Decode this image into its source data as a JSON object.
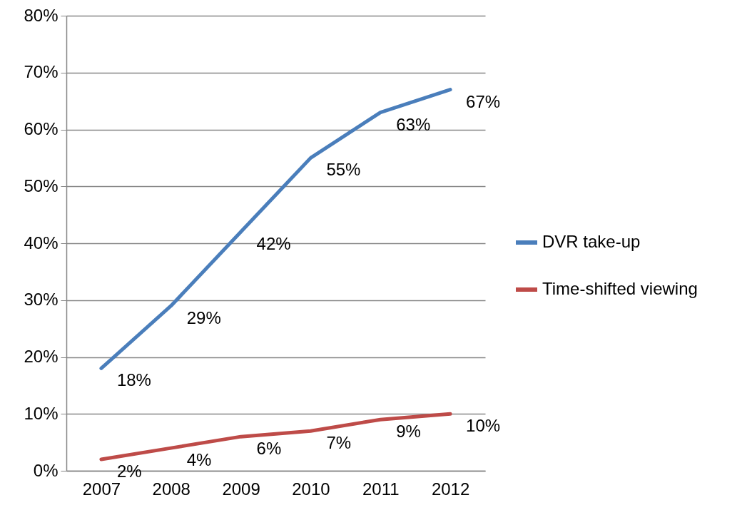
{
  "chart_data": {
    "type": "line",
    "categories": [
      "2007",
      "2008",
      "2009",
      "2010",
      "2011",
      "2012"
    ],
    "series": [
      {
        "name": "DVR take-up",
        "color": "#4a7ebb",
        "values": [
          18,
          29,
          42,
          55,
          63,
          67
        ],
        "value_labels": [
          "18%",
          "29%",
          "42%",
          "55%",
          "63%",
          "67%"
        ]
      },
      {
        "name": "Time-shifted viewing",
        "color": "#be4b48",
        "values": [
          2,
          4,
          6,
          7,
          9,
          10
        ],
        "value_labels": [
          "2%",
          "4%",
          "6%",
          "7%",
          "9%",
          "10%"
        ]
      }
    ],
    "ylim": [
      0,
      80
    ],
    "yticks": [
      {
        "value": 0,
        "label": "0%"
      },
      {
        "value": 10,
        "label": "10%"
      },
      {
        "value": 20,
        "label": "20%"
      },
      {
        "value": 30,
        "label": "30%"
      },
      {
        "value": 40,
        "label": "40%"
      },
      {
        "value": 50,
        "label": "50%"
      },
      {
        "value": 60,
        "label": "60%"
      },
      {
        "value": 70,
        "label": "70%"
      },
      {
        "value": 80,
        "label": "80%"
      }
    ],
    "grid": "y",
    "legend": "right",
    "marker": "none",
    "line_style": "solid"
  }
}
